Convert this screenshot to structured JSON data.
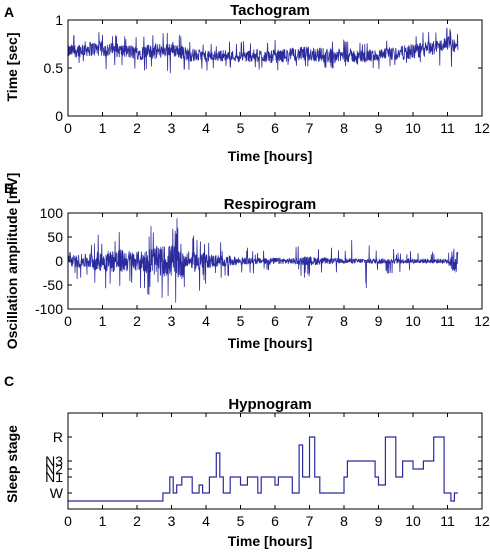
{
  "panels": [
    {
      "letter": "A",
      "title": "Tachogram",
      "xlabel": "Time [hours]",
      "ylabel": "Time [sec]"
    },
    {
      "letter": "B",
      "title": "Respirogram",
      "xlabel": "Time [hours]",
      "ylabel": "Oscillation amplitude [mV]"
    },
    {
      "letter": "C",
      "title": "Hypnogram",
      "xlabel": "Time [hours]",
      "ylabel": "Sleep stage"
    }
  ],
  "chart_data": [
    {
      "type": "line",
      "title": "Tachogram",
      "xlabel": "Time [hours]",
      "ylabel": "Time [sec]",
      "xlim": [
        0,
        12
      ],
      "ylim": [
        0,
        1
      ],
      "x_ticks": [
        "0",
        "1",
        "2",
        "3",
        "4",
        "5",
        "6",
        "7",
        "8",
        "9",
        "10",
        "11",
        "12"
      ],
      "y_ticks": [
        "0",
        "0.5",
        "1"
      ],
      "y_tick_values": [
        0,
        0.5,
        1
      ],
      "line_color": "#2b2b9e",
      "series": [
        {
          "x": [
            0,
            0.5,
            1,
            1.5,
            2,
            2.5,
            3,
            3.5,
            4,
            4.5,
            5,
            5.5,
            6,
            6.5,
            7,
            7.5,
            8,
            8.5,
            9,
            9.5,
            10,
            10.5,
            11,
            11.3
          ],
          "center": [
            0.67,
            0.7,
            0.7,
            0.68,
            0.66,
            0.67,
            0.7,
            0.64,
            0.62,
            0.63,
            0.62,
            0.63,
            0.62,
            0.64,
            0.65,
            0.63,
            0.63,
            0.62,
            0.63,
            0.65,
            0.67,
            0.7,
            0.76,
            0.72
          ],
          "spread": [
            0.07,
            0.08,
            0.08,
            0.07,
            0.08,
            0.08,
            0.08,
            0.07,
            0.06,
            0.06,
            0.06,
            0.07,
            0.07,
            0.07,
            0.08,
            0.08,
            0.07,
            0.07,
            0.07,
            0.07,
            0.08,
            0.08,
            0.07,
            0.07
          ],
          "min": [
            0.52,
            0.55,
            0.47,
            0.5,
            0.45,
            0.5,
            0.42,
            0.48,
            0.46,
            0.48,
            0.5,
            0.48,
            0.47,
            0.5,
            0.48,
            0.48,
            0.5,
            0.52,
            0.48,
            0.5,
            0.55,
            0.55,
            0.48,
            0.55
          ],
          "max": [
            0.84,
            0.86,
            0.88,
            0.85,
            0.82,
            0.85,
            0.92,
            0.8,
            0.74,
            0.78,
            0.78,
            0.8,
            0.8,
            0.82,
            0.86,
            0.8,
            0.8,
            0.78,
            0.8,
            0.82,
            0.86,
            0.9,
            0.92,
            0.88
          ]
        }
      ]
    },
    {
      "type": "line",
      "title": "Respirogram",
      "xlabel": "Time [hours]",
      "ylabel": "Oscillation amplitude [mV]",
      "xlim": [
        0,
        12
      ],
      "ylim": [
        -100,
        100
      ],
      "x_ticks": [
        "0",
        "1",
        "2",
        "3",
        "4",
        "5",
        "6",
        "7",
        "8",
        "9",
        "10",
        "11",
        "12"
      ],
      "y_ticks": [
        "-100",
        "-50",
        "0",
        "50",
        "100"
      ],
      "y_tick_values": [
        -100,
        -50,
        0,
        50,
        100
      ],
      "line_color": "#2b2b9e",
      "series": [
        {
          "x": [
            0,
            0.5,
            1,
            1.5,
            2,
            2.5,
            3,
            3.3,
            3.5,
            3.7,
            4,
            4.5,
            5,
            5.5,
            6,
            6.5,
            7,
            7.5,
            8,
            8.5,
            9,
            9.5,
            10,
            10.5,
            11,
            11.2,
            11.3
          ],
          "spread": [
            12,
            15,
            22,
            25,
            20,
            30,
            35,
            40,
            8,
            25,
            15,
            12,
            8,
            6,
            7,
            6,
            10,
            6,
            5,
            5,
            6,
            5,
            5,
            5,
            5,
            30,
            20
          ],
          "peak": [
            30,
            45,
            60,
            70,
            55,
            80,
            85,
            95,
            20,
            70,
            50,
            40,
            30,
            25,
            30,
            25,
            50,
            30,
            30,
            90,
            30,
            25,
            25,
            20,
            20,
            95,
            60
          ]
        }
      ]
    },
    {
      "type": "line",
      "title": "Hypnogram",
      "xlabel": "Time [hours]",
      "ylabel": "Sleep stage",
      "xlim": [
        0,
        12
      ],
      "ylim": [
        0,
        6
      ],
      "x_ticks": [
        "0",
        "1",
        "2",
        "3",
        "4",
        "5",
        "6",
        "7",
        "8",
        "9",
        "10",
        "11",
        "12"
      ],
      "y_ticks": [
        "W",
        "N1",
        "N2",
        "N3",
        "R"
      ],
      "y_tick_values": [
        1,
        2,
        2.5,
        3,
        4.5
      ],
      "line_color": "#2b2b9e",
      "series": [
        {
          "x": [
            0,
            2.75,
            2.75,
            2.95,
            2.95,
            3.05,
            3.05,
            3.15,
            3.15,
            3.3,
            3.3,
            3.6,
            3.6,
            3.8,
            3.8,
            3.9,
            3.9,
            4.1,
            4.1,
            4.3,
            4.3,
            4.4,
            4.4,
            4.5,
            4.5,
            4.7,
            4.7,
            5.0,
            5.0,
            5.2,
            5.2,
            5.5,
            5.5,
            5.6,
            5.6,
            6.0,
            6.0,
            6.1,
            6.1,
            6.5,
            6.5,
            6.7,
            6.7,
            6.8,
            6.8,
            7.0,
            7.0,
            7.15,
            7.15,
            7.3,
            7.3,
            8.0,
            8.0,
            8.1,
            8.1,
            8.9,
            8.9,
            9.0,
            9.0,
            9.2,
            9.2,
            9.5,
            9.5,
            9.7,
            9.7,
            10.0,
            10.0,
            10.3,
            10.3,
            10.6,
            10.6,
            10.9,
            10.9,
            11.1,
            11.1,
            11.2,
            11.2,
            11.3
          ],
          "y": [
            0.5,
            0.5,
            1,
            1,
            2,
            2,
            1,
            1,
            1.5,
            1.5,
            2,
            2,
            1,
            1,
            1.5,
            1.5,
            1,
            1,
            2,
            2,
            3.5,
            3.5,
            2,
            2,
            1,
            1,
            2,
            2,
            1.5,
            1.5,
            2,
            2,
            1,
            1,
            2,
            2,
            1.5,
            1.5,
            2,
            2,
            1,
            1,
            4,
            4,
            2,
            2,
            4.5,
            4.5,
            2,
            2,
            1,
            1,
            2,
            2,
            3,
            3,
            2,
            2,
            1.5,
            1.5,
            4.5,
            4.5,
            2,
            2,
            3,
            3,
            2.5,
            2.5,
            3,
            3,
            4.5,
            4.5,
            1,
            1,
            0.5,
            0.5,
            1,
            1
          ]
        }
      ]
    }
  ]
}
